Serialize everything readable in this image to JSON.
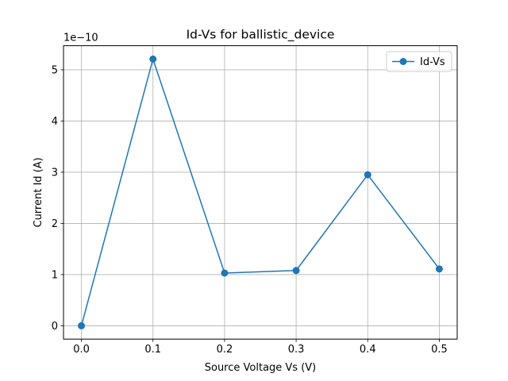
{
  "chart_data": {
    "type": "line",
    "title": "Id-Vs for ballistic_device",
    "xlabel": "Source Voltage Vs (V)",
    "ylabel": "Current Id (A)",
    "y_scale_note": "1e−10",
    "x": [
      0.0,
      0.1,
      0.2,
      0.3,
      0.4,
      0.5
    ],
    "xticks": [
      0.0,
      0.1,
      0.2,
      0.3,
      0.4,
      0.5
    ],
    "xtick_labels": [
      "0.0",
      "0.1",
      "0.2",
      "0.3",
      "0.4",
      "0.5"
    ],
    "yticks": [
      0,
      1,
      2,
      3,
      4,
      5
    ],
    "ytick_labels": [
      "0",
      "1",
      "2",
      "3",
      "4",
      "5"
    ],
    "xlim": [
      -0.025,
      0.525
    ],
    "ylim": [
      -0.26,
      5.47
    ],
    "series": [
      {
        "name": "Id-Vs",
        "values": [
          0.0,
          5.21,
          1.03,
          1.08,
          2.95,
          1.11
        ],
        "color": "#1f77b4",
        "marker": "circle"
      }
    ],
    "grid": true,
    "legend_position": "top-right"
  }
}
